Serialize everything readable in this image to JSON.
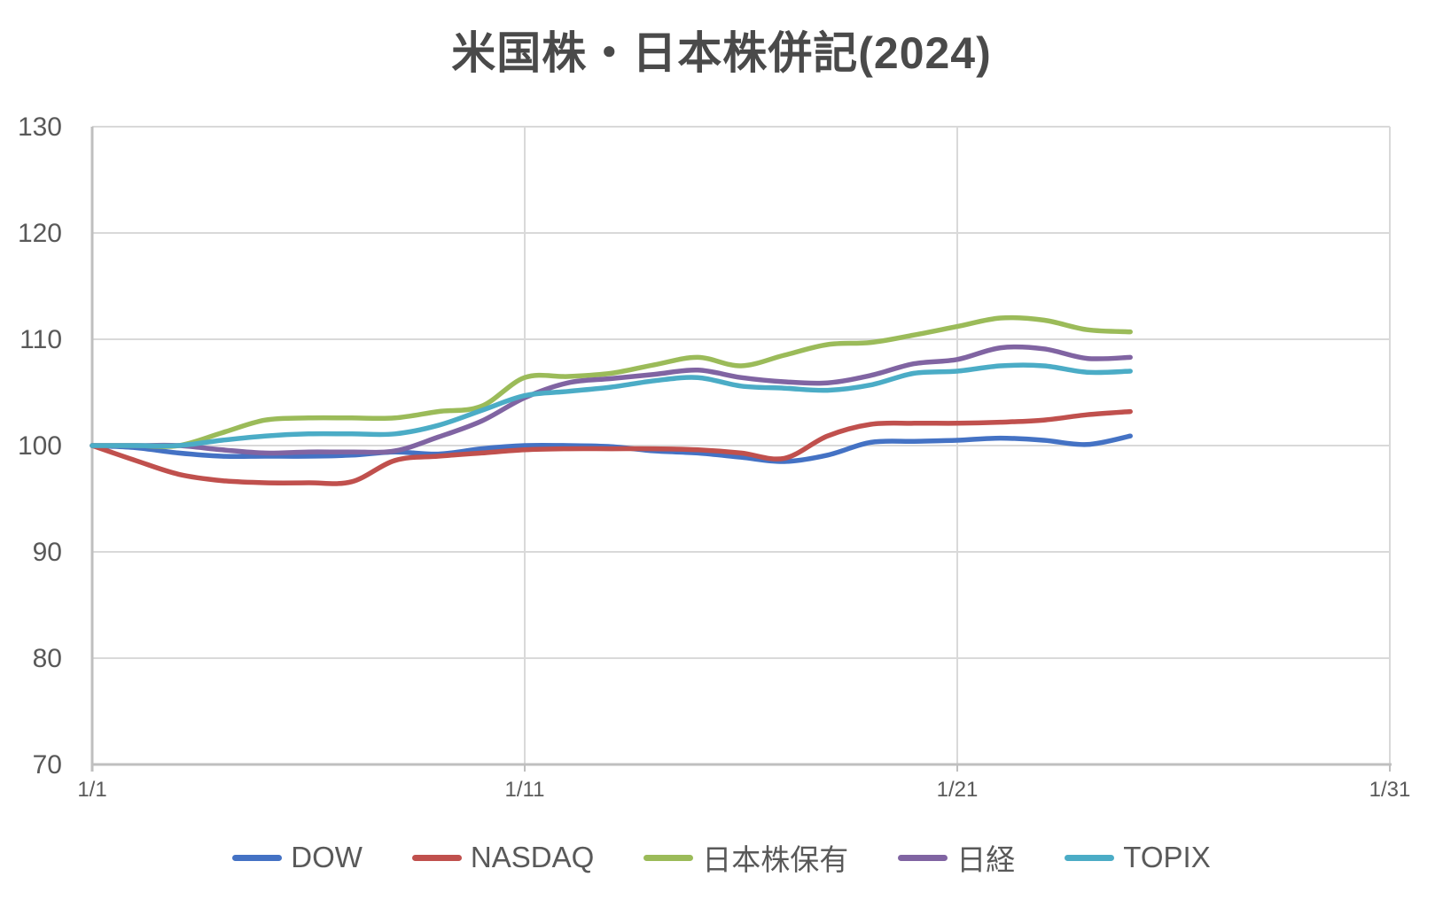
{
  "title": "米国株・日本株併記(2024)",
  "colors": {
    "background": "#FFFFFF",
    "text": "#595959",
    "title_text": "#4A4A4A",
    "gridline": "#D9D9D9",
    "axis_line": "#BFBFBF"
  },
  "chart_data": {
    "type": "line",
    "title": "米国株・日本株併記(2024)",
    "grid": true,
    "smoothed": true,
    "legend_position": "bottom",
    "y_axis": {
      "min": 70,
      "max": 130,
      "step": 10,
      "ticks": [
        130,
        120,
        110,
        100,
        90,
        80,
        70
      ]
    },
    "x_axis": {
      "total_days": 31,
      "tick_days": [
        1,
        11,
        21,
        31
      ],
      "tick_labels": [
        "1/1",
        "1/11",
        "1/21",
        "1/31"
      ]
    },
    "x": [
      "1/1",
      "1/2",
      "1/3",
      "1/4",
      "1/5",
      "1/6",
      "1/7",
      "1/8",
      "1/9",
      "1/10",
      "1/11",
      "1/12",
      "1/13",
      "1/14",
      "1/15",
      "1/16",
      "1/17",
      "1/18",
      "1/19",
      "1/20",
      "1/21",
      "1/22",
      "1/23",
      "1/24",
      "1/25"
    ],
    "series": [
      {
        "name": "DOW",
        "color": "#4472C4",
        "values": [
          100,
          99.8,
          99.3,
          99.0,
          99.0,
          99.0,
          99.1,
          99.4,
          99.2,
          99.7,
          100.0,
          100.0,
          99.9,
          99.5,
          99.3,
          98.9,
          98.5,
          99.1,
          100.3,
          100.4,
          100.5,
          100.7,
          100.5,
          100.1,
          100.9
        ]
      },
      {
        "name": "NASDAQ",
        "color": "#C0504D",
        "values": [
          100,
          98.6,
          97.3,
          96.7,
          96.5,
          96.5,
          96.6,
          98.6,
          99.0,
          99.3,
          99.6,
          99.7,
          99.7,
          99.7,
          99.6,
          99.3,
          98.8,
          100.9,
          102.0,
          102.1,
          102.1,
          102.2,
          102.4,
          102.9,
          103.2
        ]
      },
      {
        "name": "日本株保有",
        "color": "#9BBB59",
        "values": [
          100,
          100,
          100,
          101.2,
          102.4,
          102.6,
          102.6,
          102.6,
          103.2,
          103.7,
          106.4,
          106.5,
          106.8,
          107.6,
          108.3,
          107.5,
          108.5,
          109.5,
          109.7,
          110.4,
          111.2,
          112.0,
          111.8,
          110.9,
          110.7
        ]
      },
      {
        "name": "日経",
        "color": "#8064A2",
        "values": [
          100,
          100,
          100,
          99.6,
          99.3,
          99.4,
          99.4,
          99.5,
          100.8,
          102.3,
          104.5,
          105.9,
          106.3,
          106.7,
          107.1,
          106.4,
          106.0,
          105.9,
          106.6,
          107.7,
          108.1,
          109.2,
          109.1,
          108.2,
          108.3
        ]
      },
      {
        "name": "TOPIX",
        "color": "#4BACC6",
        "values": [
          100,
          100,
          100,
          100.5,
          100.9,
          101.1,
          101.1,
          101.1,
          101.9,
          103.3,
          104.7,
          105.1,
          105.5,
          106.1,
          106.4,
          105.6,
          105.4,
          105.2,
          105.7,
          106.8,
          107.0,
          107.5,
          107.5,
          106.9,
          107.0
        ]
      }
    ]
  }
}
